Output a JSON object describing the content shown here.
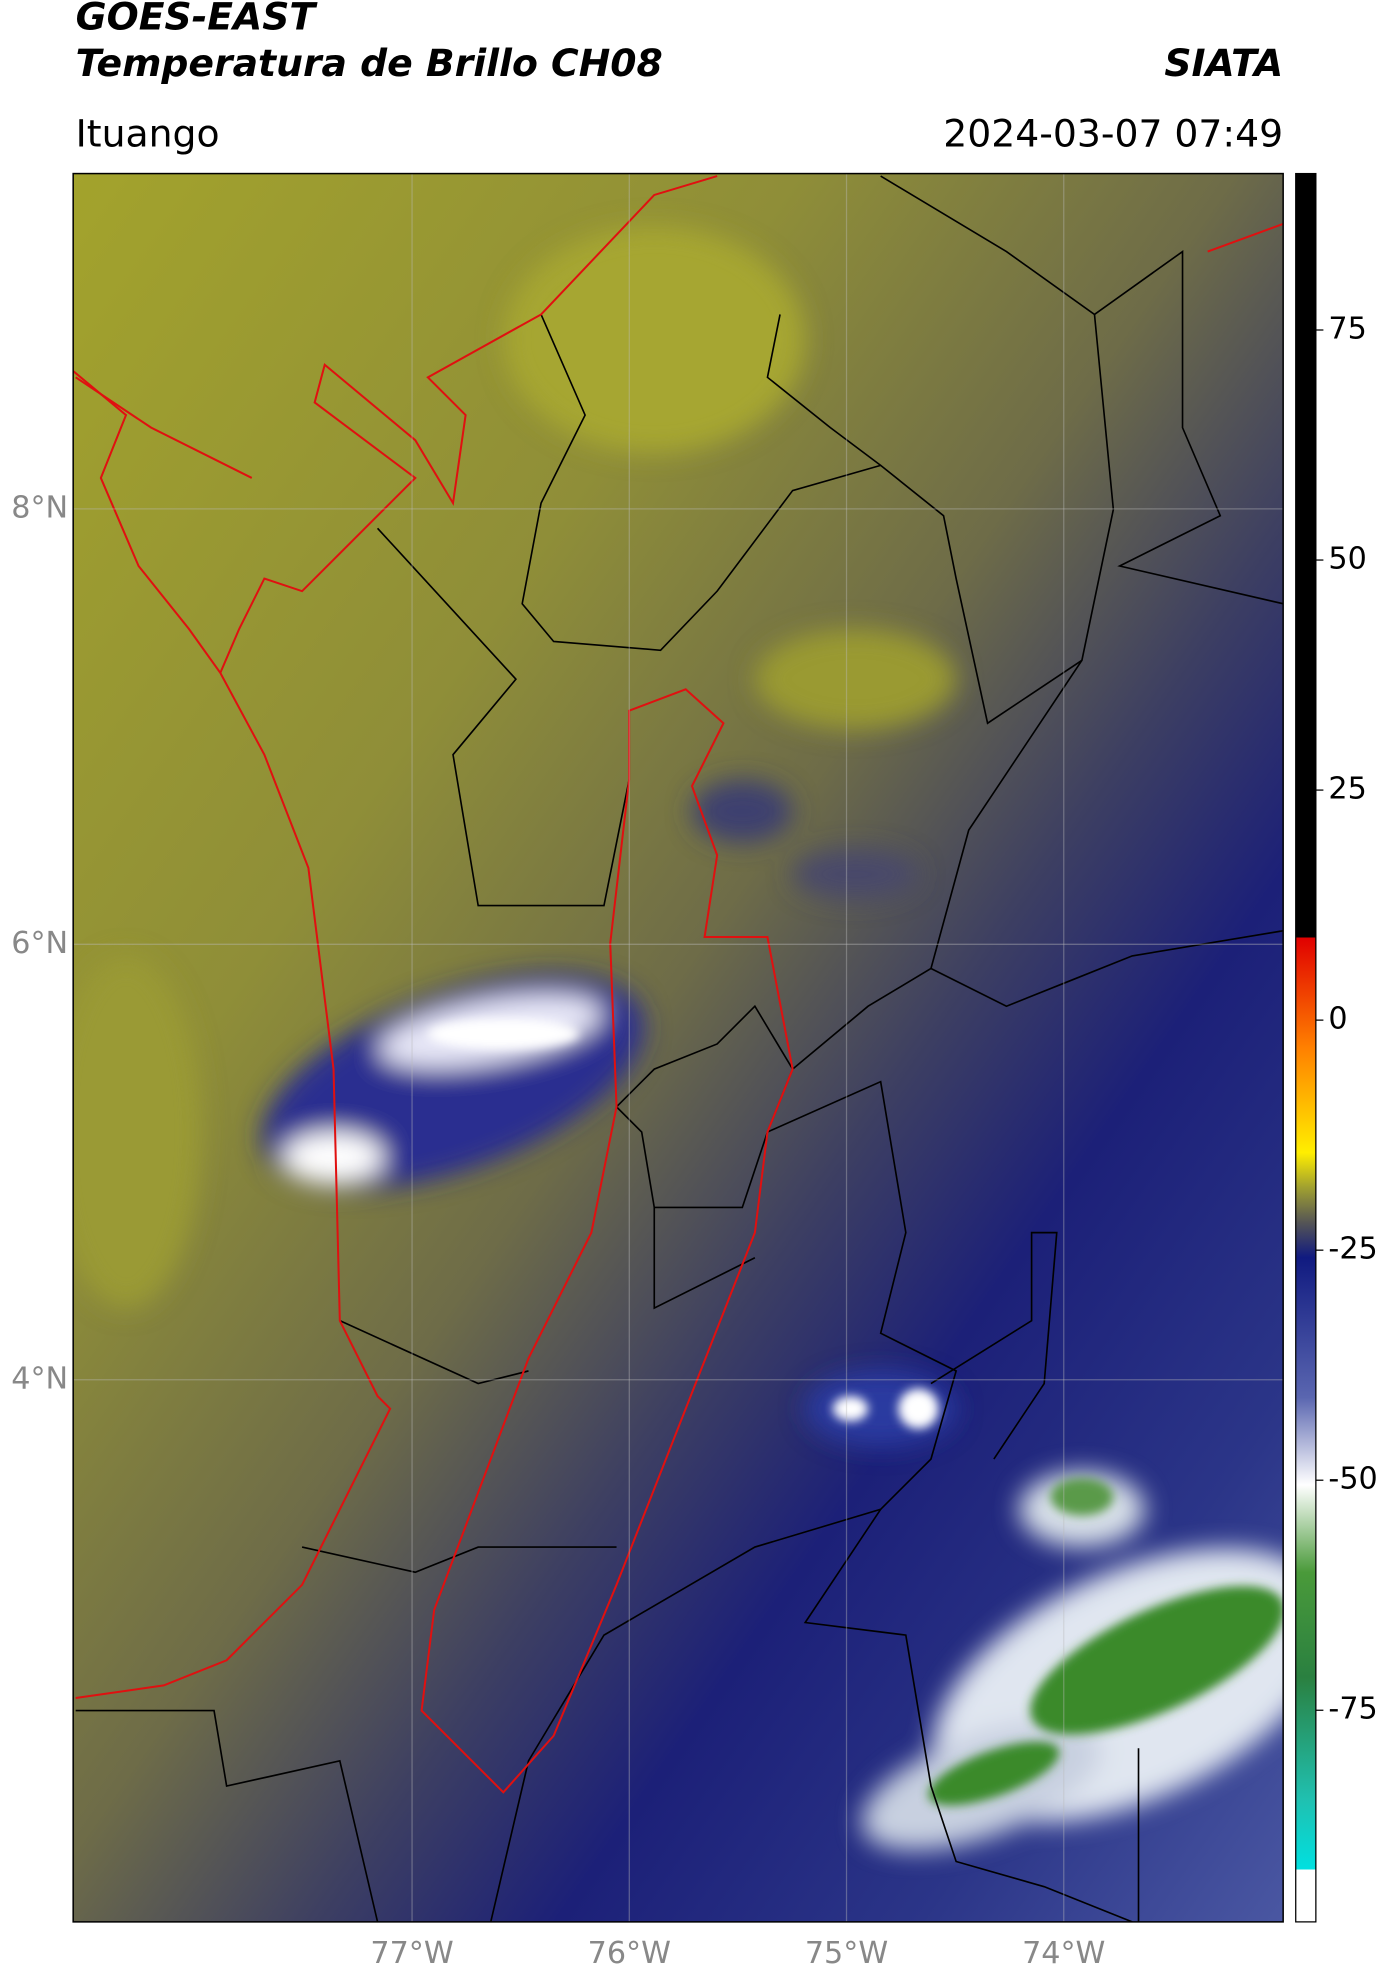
{
  "header": {
    "title": "GOES-EAST",
    "subtitle": "Temperatura de Brillo CH08",
    "source": "SIATA",
    "location": "Ituango",
    "timestamp": "2024-03-07 07:49"
  },
  "map": {
    "xlim": [
      -78.56,
      -72.99
    ],
    "ylim": [
      1.51,
      9.54
    ],
    "xticks": [
      {
        "value": -77,
        "label": "77°W"
      },
      {
        "value": -76,
        "label": "76°W"
      },
      {
        "value": -75,
        "label": "75°W"
      },
      {
        "value": -74,
        "label": "74°W"
      }
    ],
    "yticks": [
      {
        "value": 8,
        "label": "8°N"
      },
      {
        "value": 6,
        "label": "6°N"
      },
      {
        "value": 4,
        "label": "4°N"
      }
    ],
    "grid": true
  },
  "colorbar": {
    "lim": [
      -98,
      92
    ],
    "ticks": [
      75,
      50,
      25,
      0,
      -25,
      -50,
      -75
    ]
  }
}
